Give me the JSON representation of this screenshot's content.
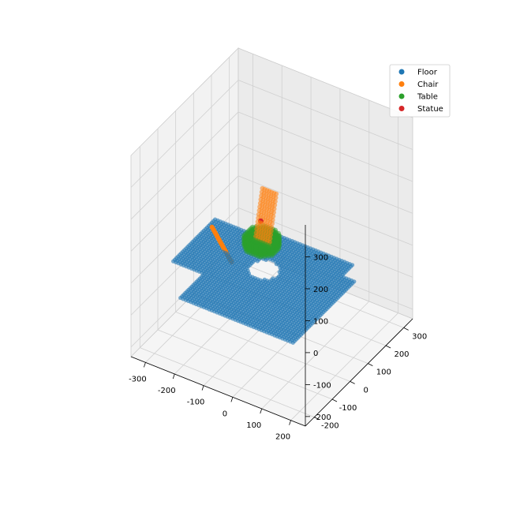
{
  "chart_data": {
    "type": "scatter",
    "projection": "3d",
    "title": "",
    "xlabel": "",
    "ylabel": "",
    "zlabel": "",
    "grid": true,
    "legend_position": "top-right",
    "xlim": [
      -350,
      250
    ],
    "ylim": [
      -250,
      350
    ],
    "zlim": [
      -230,
      400
    ],
    "x_ticks": [
      -300,
      -200,
      -100,
      0,
      100,
      200
    ],
    "y_ticks": [
      -200,
      -100,
      0,
      100,
      200,
      300
    ],
    "z_ticks": [
      -200,
      -100,
      0,
      100,
      200,
      300
    ],
    "series": [
      {
        "name": "Floor",
        "color": "#1f77b4",
        "shape": "floor-region",
        "extent": {
          "x": [
            -300,
            200
          ],
          "y": [
            -230,
            180
          ],
          "z": [
            -10,
            10
          ]
        },
        "hole_center": [
          -55,
          15
        ],
        "hole_radius": 45
      },
      {
        "name": "Chair",
        "color": "#ff7f0e",
        "shape": "chair",
        "seat_line": {
          "from": [
            -250,
            40,
            50
          ],
          "to": [
            -170,
            20,
            -20
          ]
        },
        "back_cloud": {
          "x": [
            -95,
            -40
          ],
          "y": [
            30,
            70
          ],
          "z": [
            70,
            210
          ]
        }
      },
      {
        "name": "Table",
        "color": "#2ca02c",
        "shape": "disc",
        "center": [
          -85,
          50,
          60
        ],
        "radius": 55,
        "thickness": 30
      },
      {
        "name": "Statue",
        "color": "#d62728",
        "shape": "point",
        "position": [
          -85,
          45,
          125
        ]
      }
    ]
  }
}
